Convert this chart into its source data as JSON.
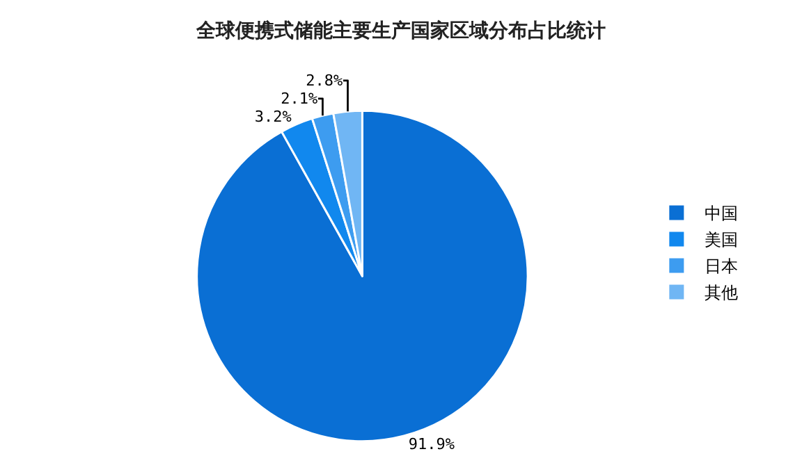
{
  "chart_data": {
    "type": "pie",
    "title": "全球便携式储能主要生产国家区域分布占比统计",
    "categories": [
      "中国",
      "美国",
      "日本",
      "其他"
    ],
    "values": [
      91.9,
      3.2,
      2.1,
      2.8
    ],
    "colors": [
      "#0a6fd4",
      "#1188ee",
      "#3d9cf0",
      "#70b6f4"
    ],
    "value_labels": [
      "91.9%",
      "3.2%",
      "2.1%",
      "2.8%"
    ],
    "legend": "right"
  }
}
